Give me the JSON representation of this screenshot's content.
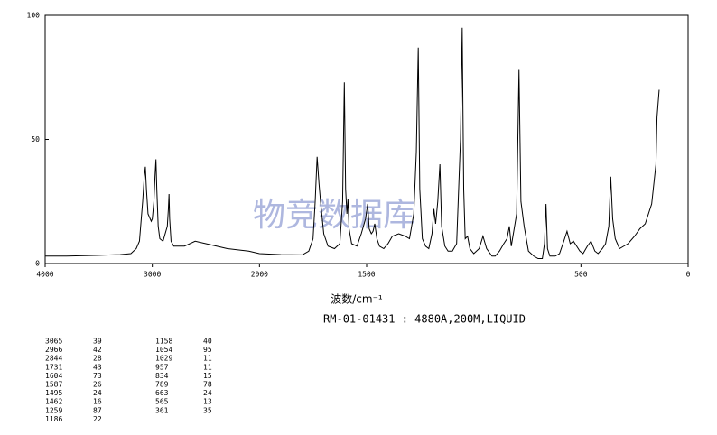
{
  "chart_data": {
    "type": "line",
    "x_label": "波数/cm⁻¹",
    "caption": "RM-01-01431 : 4880A,200M,LIQUID",
    "watermark": "物竞数据库",
    "xlim": [
      4000,
      0
    ],
    "x_scale_break": 2000,
    "x_scale_expansion": 2,
    "xticks": [
      4000,
      3000,
      2000,
      1500,
      500,
      0
    ],
    "ylim": [
      0,
      100
    ],
    "yticks": [
      0,
      50,
      100
    ],
    "color": "#000000",
    "x": [
      4000,
      3800,
      3500,
      3300,
      3200,
      3150,
      3120,
      3090,
      3075,
      3065,
      3055,
      3040,
      3030,
      3010,
      3000,
      2985,
      2975,
      2966,
      2958,
      2945,
      2930,
      2900,
      2860,
      2850,
      2844,
      2838,
      2825,
      2800,
      2700,
      2600,
      2500,
      2400,
      2300,
      2200,
      2100,
      2000,
      1900,
      1800,
      1770,
      1750,
      1740,
      1731,
      1722,
      1715,
      1700,
      1680,
      1650,
      1625,
      1612,
      1604,
      1598,
      1592,
      1587,
      1582,
      1570,
      1545,
      1525,
      1505,
      1495,
      1488,
      1478,
      1470,
      1462,
      1452,
      1440,
      1420,
      1400,
      1380,
      1350,
      1320,
      1300,
      1280,
      1268,
      1259,
      1252,
      1240,
      1225,
      1210,
      1195,
      1186,
      1178,
      1168,
      1158,
      1150,
      1135,
      1120,
      1100,
      1080,
      1062,
      1054,
      1047,
      1040,
      1029,
      1018,
      1000,
      975,
      957,
      940,
      915,
      900,
      880,
      860,
      845,
      834,
      825,
      800,
      789,
      780,
      765,
      745,
      720,
      700,
      680,
      670,
      663,
      656,
      645,
      620,
      600,
      580,
      565,
      550,
      535,
      520,
      505,
      490,
      470,
      453,
      435,
      420,
      400,
      385,
      370,
      361,
      352,
      340,
      320,
      300,
      280,
      250,
      225,
      200,
      170,
      150,
      145,
      135
    ],
    "values": [
      3,
      3,
      3.3,
      3.6,
      4,
      6,
      9,
      25,
      35,
      39,
      30,
      20,
      19,
      17,
      18,
      25,
      35,
      42,
      30,
      15,
      10,
      9,
      15,
      22,
      28,
      18,
      9,
      7,
      7,
      9,
      8,
      7,
      6,
      5.5,
      5,
      4,
      3.6,
      3.5,
      5,
      10,
      25,
      43,
      32,
      25,
      12,
      7,
      6,
      8,
      25,
      73,
      30,
      20,
      26,
      14,
      8,
      7,
      12,
      18,
      24,
      14,
      12,
      13,
      16,
      10,
      7,
      6,
      8,
      11,
      12,
      11,
      10,
      20,
      45,
      87,
      30,
      10,
      7,
      6,
      12,
      22,
      16,
      25,
      40,
      15,
      7,
      5,
      5,
      8,
      50,
      95,
      30,
      10,
      11,
      6,
      4,
      6,
      11,
      6,
      3,
      3,
      5,
      8,
      10,
      15,
      7,
      20,
      78,
      25,
      15,
      5,
      3,
      2,
      2,
      8,
      24,
      6,
      3,
      3,
      4,
      9,
      13,
      8,
      9,
      7,
      5,
      4,
      7,
      9,
      5,
      4,
      6,
      8,
      15,
      35,
      18,
      10,
      6,
      7,
      8,
      11,
      14,
      16,
      24,
      40,
      59,
      70
    ],
    "peaks": [
      [
        3065,
        39
      ],
      [
        2966,
        42
      ],
      [
        2844,
        28
      ],
      [
        1731,
        43
      ],
      [
        1604,
        73
      ],
      [
        1587,
        26
      ],
      [
        1495,
        24
      ],
      [
        1462,
        16
      ],
      [
        1259,
        87
      ],
      [
        1186,
        22
      ],
      [
        1158,
        40
      ],
      [
        1054,
        95
      ],
      [
        1029,
        11
      ],
      [
        957,
        11
      ],
      [
        834,
        15
      ],
      [
        789,
        78
      ],
      [
        663,
        24
      ],
      [
        565,
        13
      ],
      [
        361,
        35
      ]
    ]
  }
}
